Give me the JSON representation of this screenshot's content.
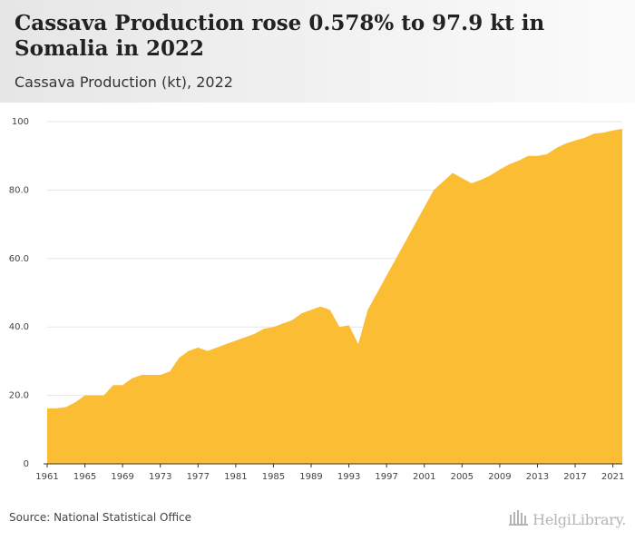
{
  "header": {
    "title": "Cassava Production rose 0.578% to 97.9 kt in Somalia in 2022",
    "subtitle": "Cassava Production (kt), 2022"
  },
  "footer": {
    "source": "Source: National Statistical Office",
    "logo_text": "HelgiLibrary."
  },
  "colors": {
    "area_fill": "#fbbd33",
    "grid": "#e5e5e5",
    "axis": "#333333"
  },
  "chart_data": {
    "type": "area",
    "title": "Cassava Production rose 0.578% to 97.9 kt in Somalia in 2022",
    "subtitle": "Cassava Production (kt), 2022",
    "xlabel": "",
    "ylabel": "",
    "xlim": [
      1961,
      2022
    ],
    "ylim": [
      0,
      100
    ],
    "grid": true,
    "legend": "none",
    "y_ticks": [
      {
        "value": 0,
        "label": "0"
      },
      {
        "value": 20,
        "label": "20.0"
      },
      {
        "value": 40,
        "label": "40.0"
      },
      {
        "value": 60,
        "label": "60.0"
      },
      {
        "value": 80,
        "label": "80.0"
      },
      {
        "value": 100,
        "label": "100"
      }
    ],
    "x_ticks": [
      1961,
      1965,
      1969,
      1973,
      1977,
      1981,
      1985,
      1989,
      1993,
      1997,
      2001,
      2005,
      2009,
      2013,
      2017,
      2021
    ],
    "x": [
      1961,
      1962,
      1963,
      1964,
      1965,
      1966,
      1967,
      1968,
      1969,
      1970,
      1971,
      1972,
      1973,
      1974,
      1975,
      1976,
      1977,
      1978,
      1979,
      1980,
      1981,
      1982,
      1983,
      1984,
      1985,
      1986,
      1987,
      1988,
      1989,
      1990,
      1991,
      1992,
      1993,
      1994,
      1995,
      1996,
      1997,
      1998,
      1999,
      2000,
      2001,
      2002,
      2003,
      2004,
      2005,
      2006,
      2007,
      2008,
      2009,
      2010,
      2011,
      2012,
      2013,
      2014,
      2015,
      2016,
      2017,
      2018,
      2019,
      2020,
      2021,
      2022
    ],
    "series": [
      {
        "values": [
          16.2,
          16.2,
          16.6,
          18.0,
          20.0,
          20.0,
          20.0,
          23.0,
          23.0,
          25.0,
          26.0,
          26.0,
          26.0,
          27.0,
          31.0,
          33.0,
          34.0,
          33.0,
          34.0,
          35.0,
          36.0,
          37.0,
          38.0,
          39.5,
          40.0,
          41.0,
          42.0,
          44.0,
          45.0,
          46.0,
          45.0,
          40.0,
          40.5,
          35.0,
          45.0,
          50.0,
          55.0,
          60.0,
          65.0,
          70.0,
          75.0,
          80.0,
          82.5,
          85.0,
          83.5,
          82.0,
          83.0,
          84.3,
          86.0,
          87.5,
          88.6,
          90.0,
          90.0,
          90.5,
          92.3,
          93.6,
          94.5,
          95.3,
          96.5,
          96.8,
          97.4,
          97.9
        ]
      }
    ]
  }
}
